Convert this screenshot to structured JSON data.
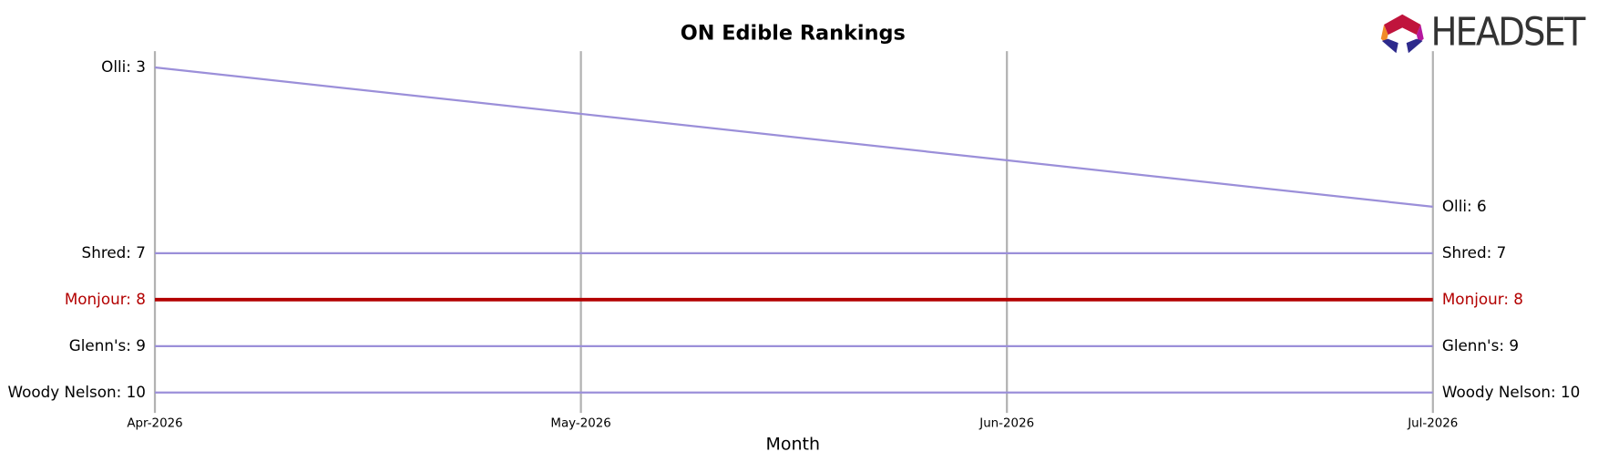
{
  "chart_data": {
    "type": "bump",
    "title": "ON Edible Rankings",
    "xlabel": "Month",
    "logo": "HEADSET",
    "categories": [
      "Apr-2026",
      "May-2026",
      "Jun-2026",
      "Jul-2026"
    ],
    "ylim": [
      10,
      3
    ],
    "grid": true,
    "series": [
      {
        "color": "#9b8fd9",
        "values": [
          3,
          4,
          5,
          6
        ],
        "value_labels": [
          "Olli: 3",
          null,
          null,
          "Olli: 6"
        ]
      },
      {
        "color": "#9b8fd9",
        "values": [
          7,
          7,
          7,
          7
        ],
        "value_labels": [
          "Shred: 7",
          null,
          null,
          "Shred: 7"
        ]
      },
      {
        "color": "#b30000",
        "highlight": true,
        "values": [
          8,
          8,
          8,
          8
        ],
        "value_labels": [
          "Monjour: 8",
          null,
          null,
          "Monjour: 8"
        ]
      },
      {
        "color": "#9b8fd9",
        "values": [
          9,
          9,
          9,
          9
        ],
        "value_labels": [
          "Glenn's: 9",
          null,
          null,
          "Glenn's: 9"
        ]
      },
      {
        "color": "#9b8fd9",
        "values": [
          10,
          10,
          10,
          10
        ],
        "value_labels": [
          "Woody Nelson: 10",
          null,
          null,
          "Woody Nelson: 10"
        ]
      }
    ]
  }
}
